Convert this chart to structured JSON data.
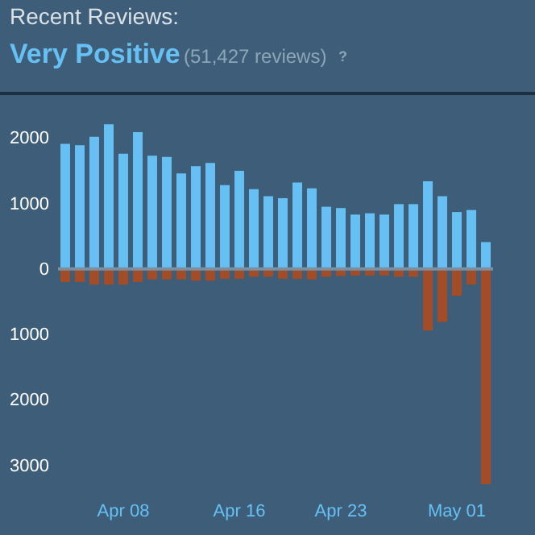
{
  "chart_data": {
    "type": "bar",
    "title": "Recent Reviews:",
    "subtitle": "Very Positive",
    "annotations": [
      "(51,427 reviews)",
      "?"
    ],
    "categories": [
      null,
      null,
      null,
      null,
      "Apr 08",
      null,
      null,
      null,
      null,
      null,
      null,
      null,
      "Apr 16",
      null,
      null,
      null,
      null,
      null,
      null,
      "Apr 23",
      null,
      null,
      null,
      null,
      null,
      null,
      null,
      "May 01",
      null,
      null
    ],
    "series": [
      {
        "color": "#66c0f4",
        "values": [
          1910,
          1890,
          2020,
          2210,
          1760,
          2090,
          1730,
          1710,
          1460,
          1570,
          1620,
          1280,
          1500,
          1220,
          1110,
          1080,
          1320,
          1230,
          950,
          930,
          830,
          850,
          830,
          990,
          990,
          1340,
          1110,
          870,
          900,
          410
        ]
      },
      {
        "color": "#a34c25",
        "values": [
          -200,
          -200,
          -240,
          -240,
          -240,
          -200,
          -160,
          -160,
          -160,
          -180,
          -180,
          -150,
          -150,
          -120,
          -120,
          -150,
          -150,
          -160,
          -120,
          -110,
          -100,
          -100,
          -100,
          -120,
          -120,
          -940,
          -810,
          -410,
          -240,
          -3290
        ]
      }
    ],
    "ylim": [
      -3350,
      2680
    ],
    "yticks": [
      {
        "value": -3000,
        "label": "3000"
      },
      {
        "value": -2000,
        "label": "2000"
      },
      {
        "value": -1000,
        "label": "1000"
      },
      0,
      1000,
      2000
    ],
    "ref_lines": [
      {
        "axis": "y",
        "value": 0,
        "color": "#7b8fa0"
      }
    ],
    "stacked": true,
    "grid": false
  }
}
